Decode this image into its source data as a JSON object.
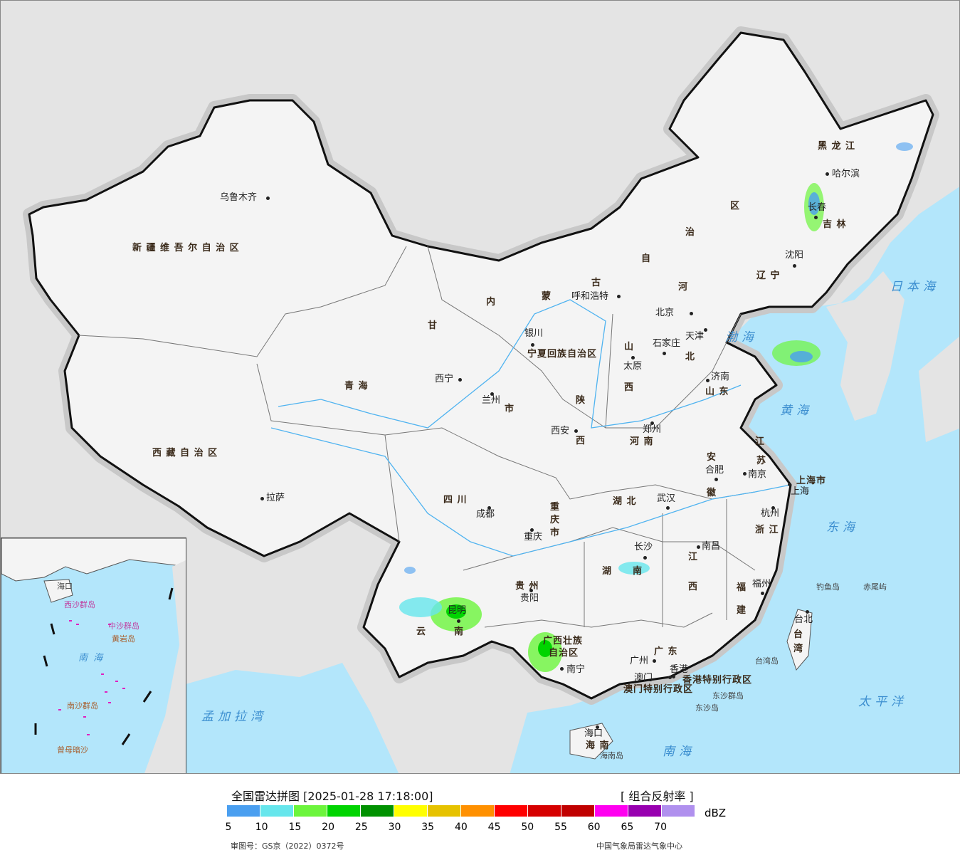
{
  "map": {
    "colors": {
      "ocean": "#b3e6fb",
      "foreign_land": "#e4e4e4",
      "china_land": "#f4f4f4",
      "border": "#111111",
      "rivers": "#4fb3f0"
    },
    "province_labels": [
      "新 疆 维 吾 尔 自 治 区",
      "西 藏 自 治 区",
      "青    海",
      "甘",
      "内",
      "蒙",
      "古",
      "自",
      "治",
      "区",
      "黑  龙  江",
      "吉   林",
      "辽  宁",
      "河",
      "北",
      "四    川",
      "云",
      "南",
      "贵    州",
      "广西壮族",
      "自治区",
      "广  东",
      "湖",
      "南",
      "湖  北",
      "江",
      "西",
      "福",
      "建",
      "浙 江",
      "安",
      "徽",
      "江",
      "苏",
      "山  东",
      "河  南",
      "山",
      "西",
      "陕",
      "西",
      "重",
      "庆",
      "市",
      "海 南",
      "上海市",
      "台",
      "湾",
      "宁夏回族自治区",
      "市"
    ],
    "cities": [
      "乌鲁木齐",
      "拉萨",
      "西宁",
      "兰州",
      "银川",
      "呼和浩特",
      "北京",
      "天津",
      "石家庄",
      "太原",
      "济南",
      "郑州",
      "西安",
      "合肥",
      "南京",
      "上海",
      "杭州",
      "武汉",
      "长沙",
      "南昌",
      "福州",
      "台北",
      "成都",
      "重庆",
      "贵阳",
      "昆明",
      "南宁",
      "广州",
      "澳门",
      "香港",
      "海口",
      "哈尔滨",
      "长春",
      "沈阳"
    ],
    "seas": [
      "日本海",
      "渤海",
      "黄海",
      "东海",
      "太平洋",
      "南海",
      "孟加拉湾"
    ],
    "islands": [
      "钓鱼岛",
      "赤尾屿",
      "台湾岛",
      "东沙群岛",
      "东沙岛",
      "海南岛",
      "香港特别行政区",
      "澳门特别行政区"
    ],
    "inset_labels": [
      "南 海",
      "中沙群岛",
      "西沙群岛",
      "海口",
      "南沙群岛",
      "曾母暗沙",
      "黄岩岛"
    ]
  },
  "legend": {
    "title": "全国雷达拼图 [2025-01-28 17:18:00]",
    "product": "[ 组合反射率 ]",
    "unit": "dBZ",
    "colors": [
      "#4a9ff0",
      "#66e6ec",
      "#6cf53c",
      "#00d400",
      "#009100",
      "#ffff00",
      "#e6c200",
      "#ff9000",
      "#ff0000",
      "#d60000",
      "#c00000",
      "#ff00f0",
      "#9800b0",
      "#b090ee"
    ],
    "ticks": [
      "5",
      "10",
      "15",
      "20",
      "25",
      "30",
      "35",
      "40",
      "45",
      "50",
      "55",
      "60",
      "65",
      "70"
    ],
    "approval_number": "审图号：GS京（2022）0372号",
    "source": "中国气象局雷达气象中心"
  }
}
